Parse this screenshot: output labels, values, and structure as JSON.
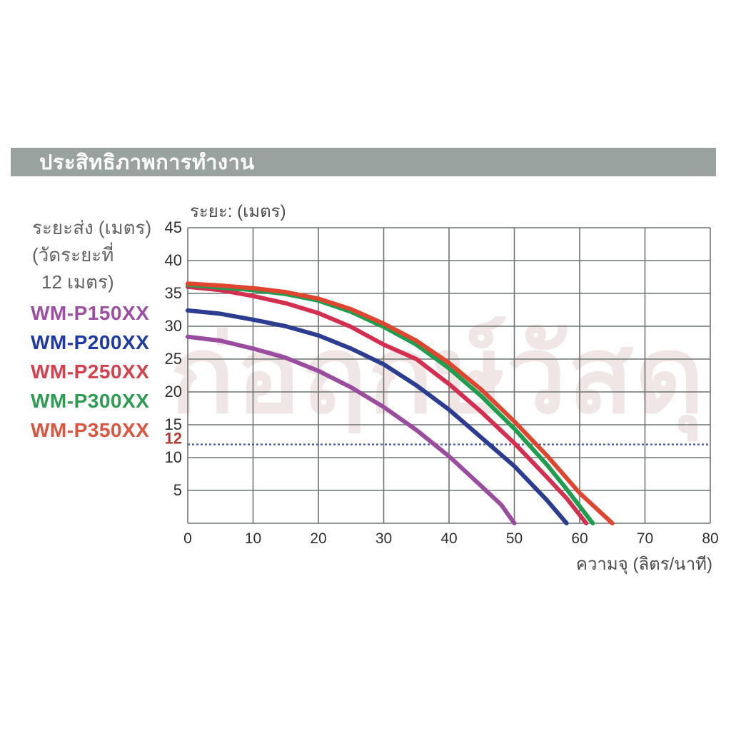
{
  "header": {
    "title": "ประสิทธิภาพการทำงาน"
  },
  "side_panel": {
    "note_lines": [
      "ระยะส่ง (เมตร)",
      "(วัดระยะที่",
      "12 เมตร)"
    ],
    "legend": [
      {
        "label": "WM-P150XX",
        "color": "#9c50a2"
      },
      {
        "label": "WM-P200XX",
        "color": "#1f3aa5"
      },
      {
        "label": "WM-P250XX",
        "color": "#d5414e"
      },
      {
        "label": "WM-P300XX",
        "color": "#2f9b55"
      },
      {
        "label": "WM-P350XX",
        "color": "#d95640"
      }
    ]
  },
  "watermark": {
    "text": "ก่อฤกษ์วัสดุ"
  },
  "chart_data": {
    "type": "line",
    "y_axis_title": "ระยะ: (เมตร)",
    "x_axis_title": "ความจุ (ลิตร/นาที)",
    "xlim": [
      0,
      80
    ],
    "ylim": [
      0,
      45
    ],
    "x_ticks": [
      0,
      10,
      20,
      30,
      40,
      50,
      60,
      70,
      80
    ],
    "y_ticks": [
      5,
      10,
      15,
      20,
      25,
      30,
      35,
      40,
      45
    ],
    "grid": true,
    "grid_color": "#6f7470",
    "tick_color": "#2f2f2f",
    "reference_line": {
      "y": 12,
      "label": "12",
      "label_color": "#b23b34",
      "line_color": "#4a5fc0",
      "style": "dotted"
    },
    "legend_position": "left",
    "series": [
      {
        "name": "WM-P150XX",
        "color": "#9a4d9e",
        "points": [
          [
            0,
            28.4
          ],
          [
            5,
            27.8
          ],
          [
            10,
            26.6
          ],
          [
            15,
            25.2
          ],
          [
            20,
            23.2
          ],
          [
            25,
            20.7
          ],
          [
            30,
            17.7
          ],
          [
            35,
            14.2
          ],
          [
            40,
            10.2
          ],
          [
            45,
            5.6
          ],
          [
            48,
            2.8
          ],
          [
            50,
            0
          ]
        ]
      },
      {
        "name": "WM-P200XX",
        "color": "#2c3d91",
        "points": [
          [
            0,
            32.4
          ],
          [
            5,
            31.9
          ],
          [
            10,
            31.0
          ],
          [
            15,
            30.0
          ],
          [
            20,
            28.6
          ],
          [
            25,
            26.6
          ],
          [
            30,
            24.2
          ],
          [
            35,
            21.0
          ],
          [
            40,
            17.3
          ],
          [
            45,
            13.0
          ],
          [
            50,
            8.7
          ],
          [
            55,
            3.5
          ],
          [
            58,
            0
          ]
        ]
      },
      {
        "name": "WM-P250XX",
        "color": "#d42e50",
        "points": [
          [
            0,
            36.0
          ],
          [
            5,
            35.5
          ],
          [
            10,
            34.6
          ],
          [
            15,
            33.5
          ],
          [
            20,
            32.0
          ],
          [
            25,
            29.9
          ],
          [
            30,
            27.2
          ],
          [
            35,
            25.0
          ],
          [
            40,
            21.2
          ],
          [
            45,
            16.9
          ],
          [
            50,
            12.2
          ],
          [
            55,
            7.0
          ],
          [
            58,
            3.8
          ],
          [
            61,
            0
          ]
        ]
      },
      {
        "name": "WM-P300XX",
        "color": "#1f9e4f",
        "points": [
          [
            0,
            36.3
          ],
          [
            5,
            35.9
          ],
          [
            10,
            35.5
          ],
          [
            15,
            34.9
          ],
          [
            20,
            33.9
          ],
          [
            25,
            32.2
          ],
          [
            30,
            29.9
          ],
          [
            35,
            27.2
          ],
          [
            40,
            23.6
          ],
          [
            45,
            19.3
          ],
          [
            50,
            14.4
          ],
          [
            55,
            8.9
          ],
          [
            58,
            5.2
          ],
          [
            62,
            0
          ]
        ]
      },
      {
        "name": "WM-P350XX",
        "color": "#e0462f",
        "points": [
          [
            0,
            36.5
          ],
          [
            5,
            36.2
          ],
          [
            10,
            35.8
          ],
          [
            15,
            35.2
          ],
          [
            20,
            34.2
          ],
          [
            25,
            32.6
          ],
          [
            30,
            30.4
          ],
          [
            35,
            27.8
          ],
          [
            40,
            24.4
          ],
          [
            45,
            20.3
          ],
          [
            50,
            15.5
          ],
          [
            55,
            10.3
          ],
          [
            60,
            4.6
          ],
          [
            65,
            0
          ]
        ]
      }
    ]
  }
}
